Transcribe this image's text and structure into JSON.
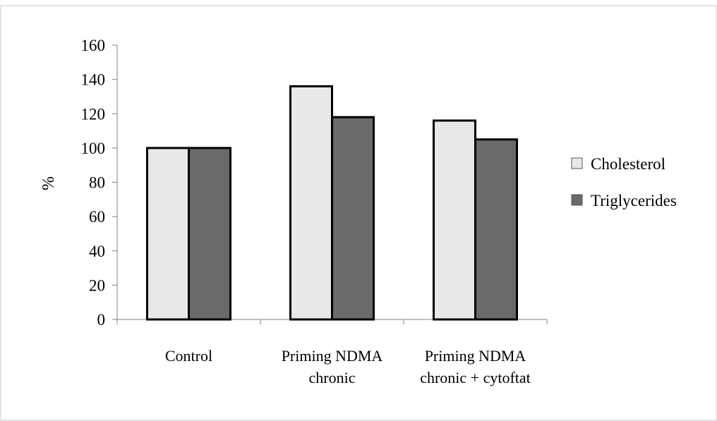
{
  "chart_data": {
    "type": "bar",
    "title": "",
    "xlabel": "",
    "ylabel": "%",
    "ylim": [
      0,
      160
    ],
    "yticks": [
      "0",
      "20",
      "40",
      "60",
      "80",
      "100",
      "120",
      "140",
      "160"
    ],
    "categories": [
      [
        "Control"
      ],
      [
        "Priming NDMA",
        "chronic"
      ],
      [
        "Priming NDMA",
        "chronic + cytoftat"
      ]
    ],
    "series": [
      {
        "name": "Cholesterol",
        "values": [
          100,
          136,
          116
        ]
      },
      {
        "name": "Triglycerides",
        "values": [
          100,
          118,
          105
        ]
      }
    ],
    "grid": false,
    "legend_position": "right"
  },
  "colors": {
    "Cholesterol": "#e8e8e8",
    "Triglycerides": "#6a6a6a",
    "stroke": "#000000",
    "axis": "#808080",
    "border": "#c8c8c8"
  }
}
